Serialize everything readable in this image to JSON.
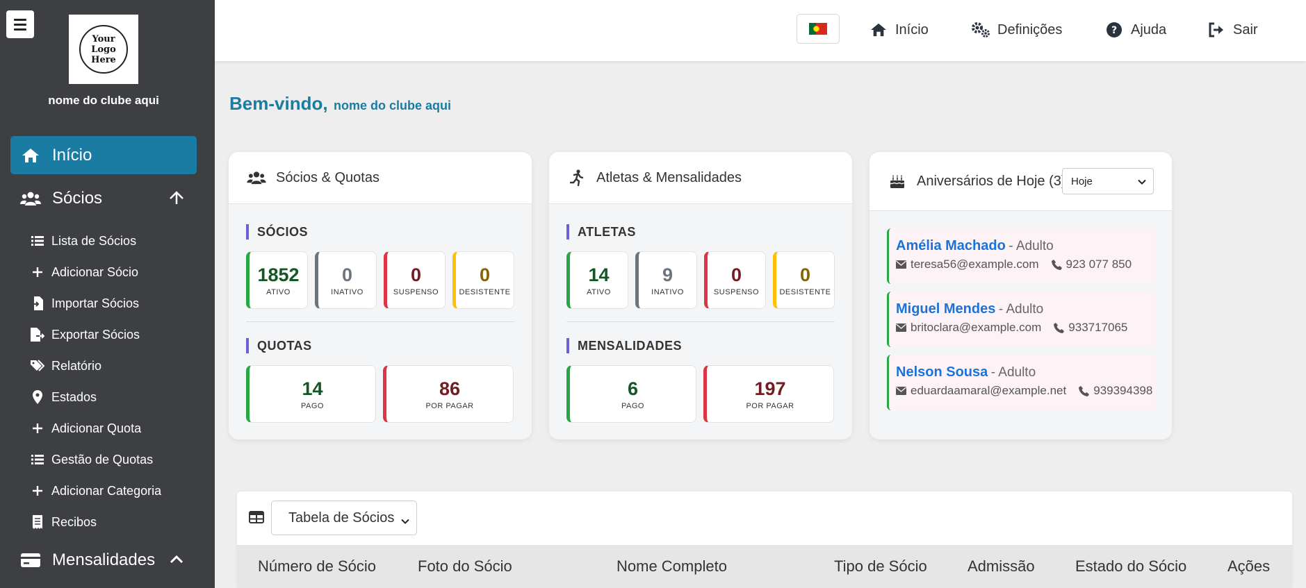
{
  "sidebar": {
    "logo_text": "Your Logo Here",
    "club_name": "nome do clube aqui",
    "main_items": [
      {
        "label": "Início",
        "icon": "home-icon"
      },
      {
        "label": "Sócios",
        "icon": "users-icon"
      },
      {
        "label": "Mensalidades",
        "icon": "card-icon"
      }
    ],
    "sub_items": [
      {
        "label": "Lista de Sócios",
        "icon": "list-icon"
      },
      {
        "label": "Adicionar Sócio",
        "icon": "plus-icon"
      },
      {
        "label": "Importar Sócios",
        "icon": "file-import-icon"
      },
      {
        "label": "Exportar Sócios",
        "icon": "file-export-icon"
      },
      {
        "label": "Relatório",
        "icon": "tags-icon"
      },
      {
        "label": "Estados",
        "icon": "map-pin-icon"
      },
      {
        "label": "Adicionar Quota",
        "icon": "plus-icon"
      },
      {
        "label": "Gestão de Quotas",
        "icon": "list-icon"
      },
      {
        "label": "Adicionar Categoria",
        "icon": "plus-icon"
      },
      {
        "label": "Recibos",
        "icon": "receipt-icon"
      }
    ]
  },
  "topbar": {
    "language": "Português",
    "links": [
      {
        "label": "Início",
        "icon": "home-icon"
      },
      {
        "label": "Definições",
        "icon": "gears-icon"
      },
      {
        "label": "Ajuda",
        "icon": "question-circle-icon"
      },
      {
        "label": "Sair",
        "icon": "sign-out-icon"
      }
    ]
  },
  "welcome": {
    "greeting": "Bem-vindo,",
    "club": "nome do clube aqui"
  },
  "socios_card": {
    "title": "Sócios & Quotas",
    "section1_title": "SÓCIOS",
    "section1_stats": [
      {
        "value": "1852",
        "label": "ATIVO"
      },
      {
        "value": "0",
        "label": "INATIVO"
      },
      {
        "value": "0",
        "label": "SUSPENSO"
      },
      {
        "value": "0",
        "label": "DESISTENTE"
      }
    ],
    "section2_title": "QUOTAS",
    "section2_stats": [
      {
        "value": "14",
        "label": "PAGO"
      },
      {
        "value": "86",
        "label": "POR PAGAR"
      }
    ]
  },
  "atletas_card": {
    "title": "Atletas & Mensalidades",
    "section1_title": "ATLETAS",
    "section1_stats": [
      {
        "value": "14",
        "label": "ATIVO"
      },
      {
        "value": "9",
        "label": "INATIVO"
      },
      {
        "value": "0",
        "label": "SUSPENSO"
      },
      {
        "value": "0",
        "label": "DESISTENTE"
      }
    ],
    "section2_title": "MENSALIDADES",
    "section2_stats": [
      {
        "value": "6",
        "label": "PAGO"
      },
      {
        "value": "197",
        "label": "POR PAGAR"
      }
    ]
  },
  "birthday_card": {
    "title": "Aniversários de Hoje (3)",
    "filter_value": "Hoje",
    "items": [
      {
        "name": "Amélia Machado",
        "type": "- Adulto",
        "email": "teresa56@example.com",
        "phone": "923 077 850"
      },
      {
        "name": "Miguel Mendes",
        "type": "- Adulto",
        "email": "britoclara@example.com",
        "phone": "933717065"
      },
      {
        "name": "Nelson Sousa",
        "type": "- Adulto",
        "email": "eduardaamaral@example.net",
        "phone": "939394398"
      }
    ]
  },
  "table": {
    "selector_value": "Tabela de Sócios",
    "columns": [
      "Número de Sócio",
      "Foto do Sócio",
      "Nome Completo",
      "Tipo de Sócio",
      "Admissão",
      "Estado do Sócio",
      "Ações"
    ]
  },
  "colors": {
    "sidebar_bg": "#3d3f42",
    "accent": "#1a7ba3",
    "green": "#28a745",
    "grey": "#6c757d",
    "red": "#dc3545",
    "yellow": "#ffc107",
    "link_blue": "#1a73d9"
  }
}
